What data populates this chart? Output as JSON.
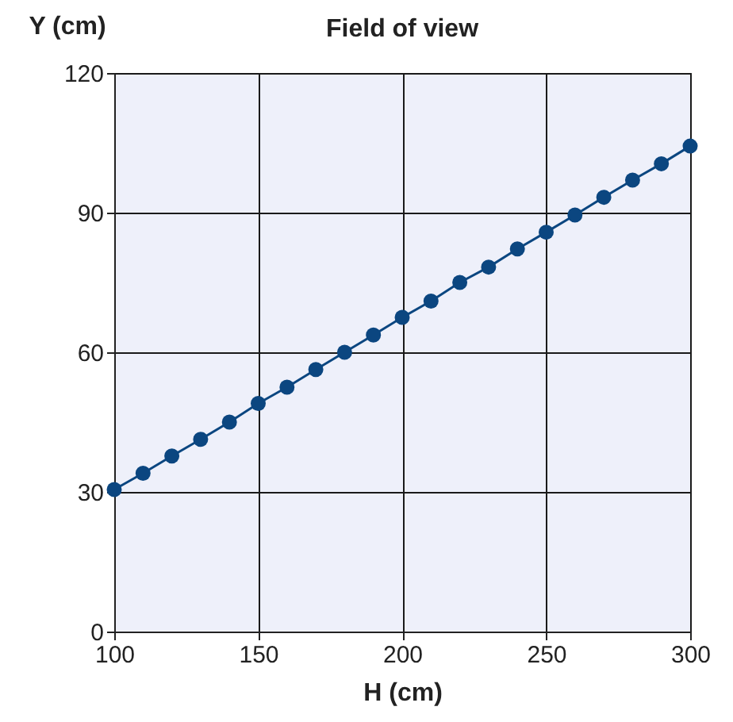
{
  "chart_data": {
    "type": "line",
    "title": "Field of view",
    "xlabel": "H (cm)",
    "ylabel": "Y (cm)",
    "x": [
      100,
      110,
      120,
      130,
      140,
      150,
      160,
      170,
      180,
      190,
      200,
      210,
      220,
      230,
      240,
      250,
      260,
      270,
      280,
      290,
      300
    ],
    "series": [
      {
        "color": "#0b4680",
        "values": [
          30.5,
          34,
          37.7,
          41.3,
          45,
          49,
          52.5,
          56.3,
          60,
          63.7,
          67.5,
          71,
          75,
          78.3,
          82.2,
          85.8,
          89.5,
          93.3,
          97,
          100.5,
          104.3
        ]
      }
    ],
    "xlim": [
      100,
      300
    ],
    "xticks": [
      100,
      150,
      200,
      250,
      300
    ],
    "ylim": [
      0,
      120
    ],
    "yticks": [
      0,
      30,
      60,
      90,
      120
    ],
    "grid": true,
    "marker": "circle",
    "line_style": "solid"
  }
}
